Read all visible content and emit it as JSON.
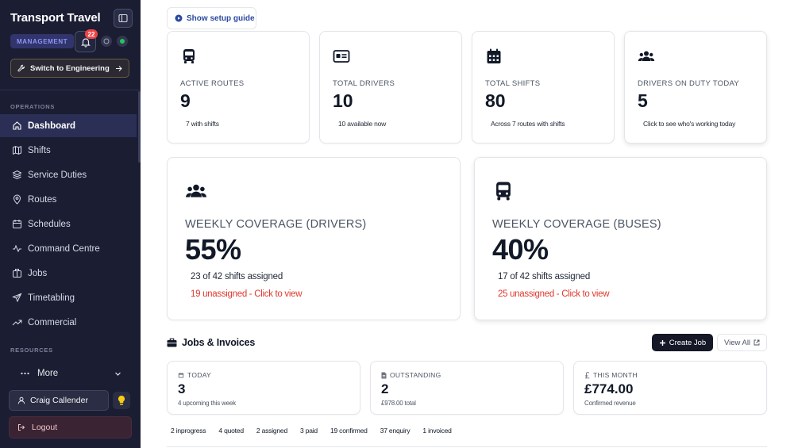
{
  "sidebar": {
    "app_title": "Transport Travel",
    "role_badge": "MANAGEMENT",
    "notifications_count": "22",
    "switch_label": "Switch to Engineering",
    "sections": {
      "operations": "OPERATIONS",
      "resources": "RESOURCES"
    },
    "nav": [
      {
        "label": "Dashboard",
        "icon": "home-icon",
        "active": true
      },
      {
        "label": "Shifts",
        "icon": "map-icon"
      },
      {
        "label": "Service Duties",
        "icon": "layers-icon"
      },
      {
        "label": "Routes",
        "icon": "pin-icon"
      },
      {
        "label": "Schedules",
        "icon": "calendar-icon"
      },
      {
        "label": "Command Centre",
        "icon": "activity-icon"
      },
      {
        "label": "Jobs",
        "icon": "briefcase-icon"
      },
      {
        "label": "Timetabling",
        "icon": "send-icon"
      },
      {
        "label": "Commercial",
        "icon": "trend-icon"
      }
    ],
    "more_label": "More",
    "user_name": "Craig Callender",
    "logout_label": "Logout"
  },
  "main": {
    "setup_guide_label": "Show setup guide",
    "stats": [
      {
        "label": "ACTIVE ROUTES",
        "value": "9",
        "sub": "7 with shifts",
        "icon": "bus-icon"
      },
      {
        "label": "TOTAL DRIVERS",
        "value": "10",
        "sub": "10 available now",
        "icon": "id-card-icon"
      },
      {
        "label": "TOTAL SHIFTS",
        "value": "80",
        "sub": "Across 7 routes with shifts",
        "icon": "calendar-icon"
      },
      {
        "label": "DRIVERS ON DUTY TODAY",
        "value": "5",
        "sub": "Click to see who's working today",
        "icon": "users-icon"
      }
    ],
    "coverage": [
      {
        "label": "WEEKLY COVERAGE (DRIVERS)",
        "value": "55%",
        "sub": "23 of 42 shifts assigned",
        "link": "19 unassigned - Click to view",
        "icon": "users-icon"
      },
      {
        "label": "WEEKLY COVERAGE (BUSES)",
        "value": "40%",
        "sub": "17 of 42 shifts assigned",
        "link": "25 unassigned - Click to view",
        "icon": "bus-icon"
      }
    ],
    "jobs": {
      "heading": "Jobs & Invoices",
      "create_label": "Create Job",
      "view_all_label": "View All",
      "cards": [
        {
          "label": "TODAY",
          "value": "3",
          "sub": "4 upcoming this week",
          "icon": "calendar-small-icon"
        },
        {
          "label": "OUTSTANDING",
          "value": "2",
          "sub": "£978.00 total",
          "icon": "document-icon"
        },
        {
          "label": "THIS MONTH",
          "value": "£774.00",
          "sub": "Confirmed revenue",
          "icon": "pound-icon"
        }
      ],
      "statuses": [
        "2 inprogress",
        "4 quoted",
        "2 assigned",
        "3 paid",
        "19 confirmed",
        "37 enquiry",
        "1 invoiced"
      ]
    }
  },
  "colors": {
    "sidebar_bg": "#1b1d33",
    "accent_link": "#e0392d",
    "setup_blue": "#2b4aa0",
    "badge_red": "#ef4444"
  }
}
